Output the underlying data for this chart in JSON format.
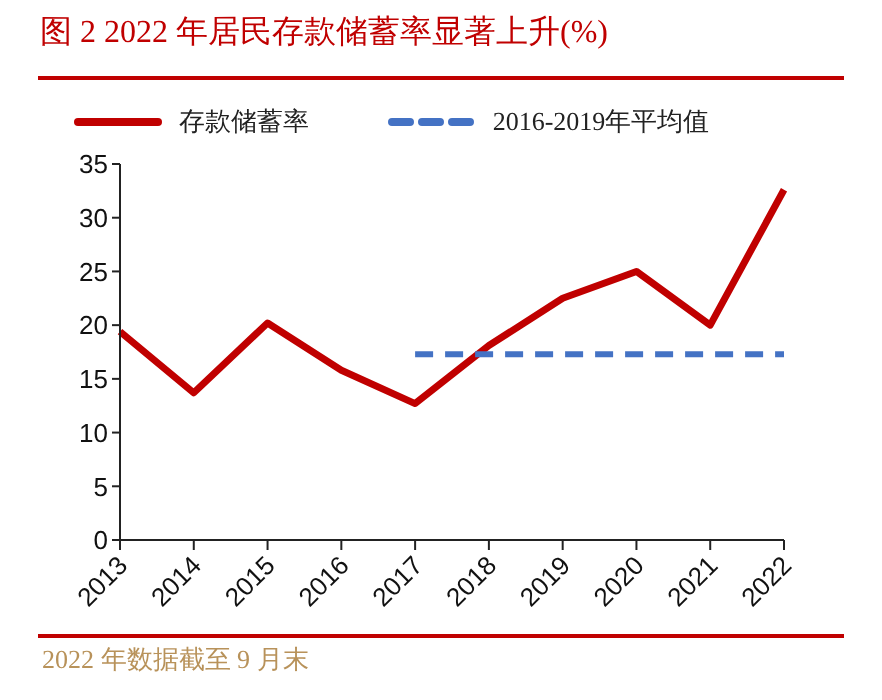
{
  "chart_data": {
    "type": "line",
    "title": "图 2 2022 年居民存款储蓄率显著上升(%)",
    "categories": [
      "2013",
      "2014",
      "2015",
      "2016",
      "2017",
      "2018",
      "2019",
      "2020",
      "2021",
      "2022"
    ],
    "series": [
      {
        "name": "存款储蓄率",
        "color": "#c00000",
        "line_style": "solid",
        "values": [
          19.4,
          13.7,
          20.2,
          15.8,
          12.7,
          18.1,
          22.5,
          25.0,
          20.0,
          32.6
        ]
      },
      {
        "name": "2016-2019年平均值",
        "color": "#4472c4",
        "line_style": "dashed",
        "values": [
          null,
          null,
          null,
          null,
          17.3,
          17.3,
          17.3,
          17.3,
          17.3,
          17.3
        ]
      }
    ],
    "ylim": [
      0,
      35
    ],
    "yticks": [
      0,
      5,
      10,
      15,
      20,
      25,
      30,
      35
    ],
    "grid": false,
    "legend": "top",
    "marker": "none",
    "annotations": [
      "2022 年数据截至 9 月末"
    ]
  }
}
